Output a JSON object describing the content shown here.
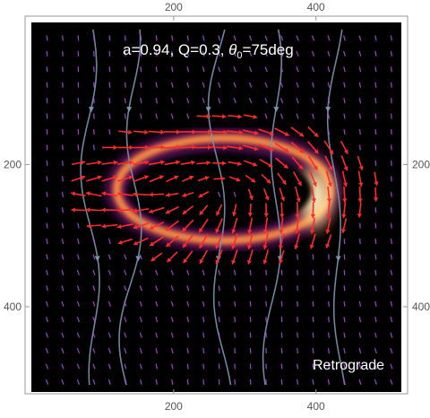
{
  "chart_data": {
    "type": "heatmap",
    "title_main": "a=0.94, Q=0.3, ",
    "title_theta": "θ",
    "title_sub": "0",
    "title_end": "=75deg",
    "annotation": "Retrograde",
    "xlim": [
      0,
      520
    ],
    "ylim": [
      0,
      520
    ],
    "x_ticks": [
      200,
      400
    ],
    "y_ticks": [
      200,
      400
    ],
    "x_tick_labels": [
      "200",
      "400"
    ],
    "y_tick_labels": [
      "200",
      "400"
    ],
    "colormap": "inferno",
    "background_color": "#000000",
    "ring": {
      "cx": 270,
      "cy": 235,
      "rx": 150,
      "ry": 72,
      "bright_side": "right"
    },
    "polarization_colors": {
      "strong": "#ff2a2a",
      "weak": "#b24be0"
    },
    "streamline_color": "#7a95b0"
  }
}
